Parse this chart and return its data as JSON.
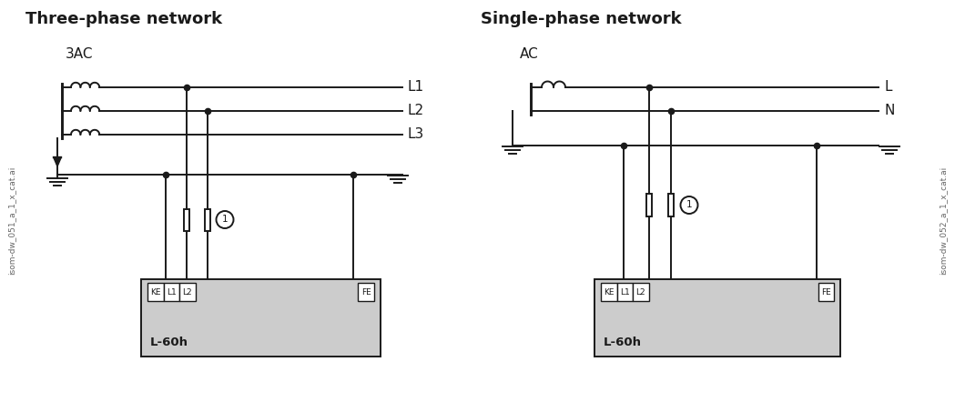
{
  "title_left": "Three-phase network",
  "title_right": "Single-phase network",
  "bg_color": "#ffffff",
  "line_color": "#1a1a1a",
  "box_fill": "#cccccc",
  "title_fontsize": 13,
  "label_fontsize": 10,
  "small_fontsize": 6.5,
  "watermark_left": "isom-dw_051_a_1_x_cat.ai",
  "watermark_right": "isom-dw_052_a_1_x_cat.ai"
}
